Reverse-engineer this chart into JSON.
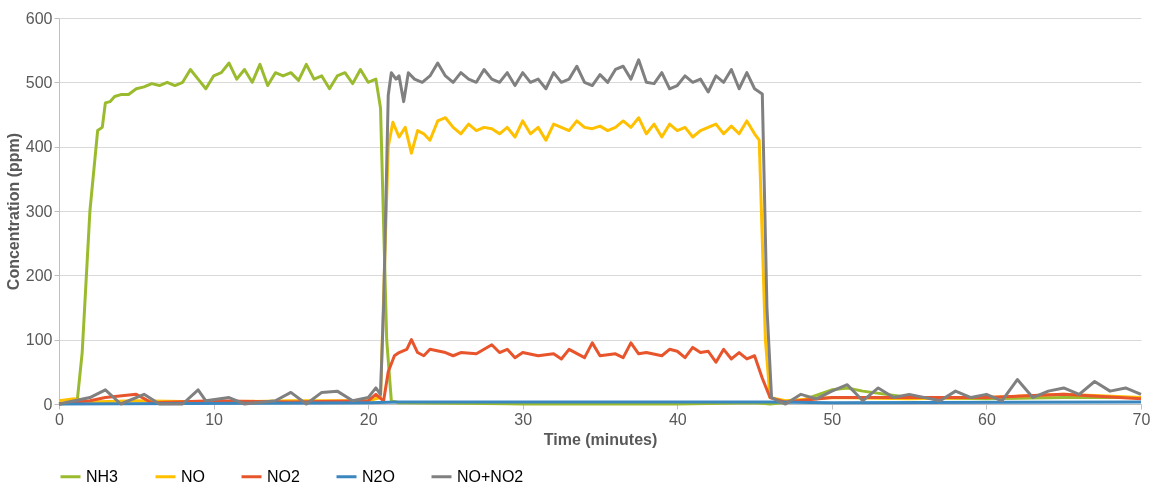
{
  "chart_data": {
    "type": "line",
    "xlabel": "Time (minutes)",
    "ylabel": "Concentration (ppm)",
    "xlim": [
      0,
      70
    ],
    "xticks": [
      0,
      10,
      20,
      30,
      40,
      50,
      60,
      70
    ],
    "ylim": [
      0,
      600
    ],
    "yticks": [
      0,
      100,
      200,
      300,
      400,
      500,
      600
    ],
    "grid": "y",
    "legend": "bottom",
    "marker": "none",
    "line_style": "solid",
    "series": [
      {
        "name": "NH3",
        "color": "#9bbb2f",
        "x": [
          0,
          1,
          1.2,
          1.5,
          2,
          2.5,
          2.8,
          3,
          3.3,
          3.6,
          4,
          4.5,
          5,
          5.5,
          6,
          6.5,
          7,
          7.5,
          8,
          8.5,
          9,
          9.5,
          10,
          10.5,
          11,
          11.5,
          12,
          12.5,
          13,
          13.5,
          14,
          14.5,
          15,
          15.5,
          16,
          16.5,
          17,
          17.5,
          18,
          18.5,
          19,
          19.5,
          20,
          20.5,
          20.8,
          21.2,
          21.5,
          22,
          30,
          40,
          45,
          46,
          48,
          50,
          51,
          52,
          55,
          60,
          65,
          70
        ],
        "values": [
          0,
          2,
          10,
          80,
          300,
          425,
          430,
          468,
          470,
          478,
          481,
          481,
          490,
          493,
          498,
          495,
          500,
          495,
          500,
          520,
          505,
          490,
          510,
          515,
          530,
          505,
          520,
          500,
          528,
          495,
          515,
          510,
          515,
          503,
          528,
          505,
          510,
          490,
          510,
          515,
          498,
          520,
          500,
          505,
          460,
          100,
          5,
          2,
          0,
          0,
          2,
          0,
          5,
          22,
          25,
          20,
          10,
          8,
          10,
          10
        ]
      },
      {
        "name": "NO",
        "color": "#ffc000",
        "x": [
          0,
          1,
          2,
          5,
          10,
          15,
          20,
          20.8,
          21.3,
          21.6,
          22,
          22.4,
          22.8,
          23.2,
          23.6,
          24,
          24.5,
          25,
          25.5,
          26,
          26.5,
          27,
          27.5,
          28,
          28.5,
          29,
          29.5,
          30,
          30.5,
          31,
          31.5,
          32,
          32.5,
          33,
          33.5,
          34,
          34.5,
          35,
          35.5,
          36,
          36.5,
          37,
          37.5,
          38,
          38.5,
          39,
          39.5,
          40,
          40.5,
          41,
          41.5,
          42,
          42.5,
          43,
          43.5,
          44,
          44.5,
          45,
          45.3,
          45.7,
          46,
          47,
          50,
          55,
          60,
          65,
          70
        ],
        "values": [
          5,
          8,
          3,
          5,
          3,
          5,
          5,
          10,
          400,
          438,
          415,
          430,
          390,
          425,
          420,
          410,
          440,
          445,
          430,
          420,
          435,
          425,
          430,
          428,
          420,
          430,
          415,
          440,
          420,
          430,
          410,
          435,
          430,
          425,
          440,
          430,
          428,
          432,
          425,
          430,
          440,
          430,
          445,
          420,
          435,
          415,
          435,
          425,
          430,
          415,
          425,
          430,
          435,
          420,
          432,
          420,
          440,
          420,
          410,
          100,
          10,
          5,
          10,
          8,
          10,
          15,
          10
        ]
      },
      {
        "name": "NO2",
        "color": "#e8542b",
        "x": [
          0,
          2,
          3,
          5,
          6,
          10,
          15,
          20,
          20.5,
          21,
          21.3,
          21.7,
          22,
          22.5,
          22.8,
          23.2,
          23.6,
          24,
          25,
          25.5,
          26,
          27,
          28,
          28.5,
          29,
          29.5,
          30,
          31,
          32,
          32.5,
          33,
          34,
          34.5,
          35,
          36,
          36.5,
          37,
          37.5,
          38,
          39,
          39.5,
          40,
          40.5,
          41,
          41.5,
          42,
          42.5,
          43,
          43.5,
          44,
          44.5,
          45,
          45.5,
          46,
          47,
          50,
          55,
          60,
          65,
          70
        ],
        "values": [
          0,
          5,
          10,
          15,
          2,
          5,
          3,
          5,
          15,
          5,
          50,
          75,
          80,
          85,
          100,
          80,
          75,
          85,
          80,
          75,
          80,
          78,
          92,
          80,
          85,
          72,
          80,
          75,
          78,
          70,
          85,
          72,
          95,
          75,
          78,
          72,
          95,
          78,
          80,
          75,
          85,
          82,
          72,
          88,
          80,
          82,
          65,
          85,
          70,
          80,
          70,
          75,
          40,
          10,
          3,
          10,
          10,
          10,
          15,
          8
        ]
      },
      {
        "name": "N2O",
        "color": "#3a87c0",
        "x": [
          0,
          20,
          22,
          30,
          40,
          46,
          50,
          70
        ],
        "values": [
          0,
          2,
          3,
          3,
          3,
          3,
          2,
          3
        ]
      },
      {
        "name": "NO+NO2",
        "color": "#808080",
        "x": [
          0,
          2,
          3,
          4,
          5.5,
          6.5,
          8,
          9,
          9.5,
          11,
          12,
          14,
          15,
          16,
          17,
          18,
          19,
          20,
          20.5,
          20.8,
          21,
          21.3,
          21.5,
          21.8,
          22,
          22.3,
          22.6,
          23,
          23.5,
          24,
          24.5,
          25,
          25.5,
          26,
          26.5,
          27,
          27.5,
          28,
          28.5,
          29,
          29.5,
          30,
          30.5,
          31,
          31.5,
          32,
          32.5,
          33,
          33.5,
          34,
          34.5,
          35,
          35.5,
          36,
          36.5,
          37,
          37.5,
          38,
          38.5,
          39,
          39.5,
          40,
          40.5,
          41,
          41.5,
          42,
          42.5,
          43,
          43.5,
          44,
          44.5,
          45,
          45.5,
          45.8,
          46.1,
          46.5,
          47,
          48,
          49,
          50,
          51,
          52,
          53,
          54,
          55,
          57,
          58,
          59,
          60,
          61,
          62,
          63,
          64,
          65,
          66,
          67,
          68,
          69,
          70
        ],
        "values": [
          0,
          10,
          22,
          0,
          15,
          0,
          0,
          22,
          5,
          10,
          0,
          5,
          18,
          0,
          18,
          20,
          5,
          10,
          25,
          15,
          150,
          480,
          515,
          505,
          510,
          470,
          515,
          505,
          500,
          510,
          530,
          510,
          500,
          515,
          505,
          500,
          520,
          505,
          500,
          515,
          495,
          515,
          500,
          505,
          490,
          515,
          500,
          505,
          525,
          500,
          495,
          512,
          500,
          520,
          525,
          505,
          535,
          500,
          498,
          515,
          490,
          495,
          510,
          500,
          505,
          485,
          510,
          500,
          520,
          490,
          515,
          490,
          482,
          150,
          10,
          5,
          0,
          15,
          8,
          20,
          30,
          5,
          25,
          10,
          15,
          5,
          20,
          10,
          15,
          5,
          38,
          10,
          20,
          25,
          15,
          35,
          20,
          25,
          15
        ]
      }
    ]
  }
}
